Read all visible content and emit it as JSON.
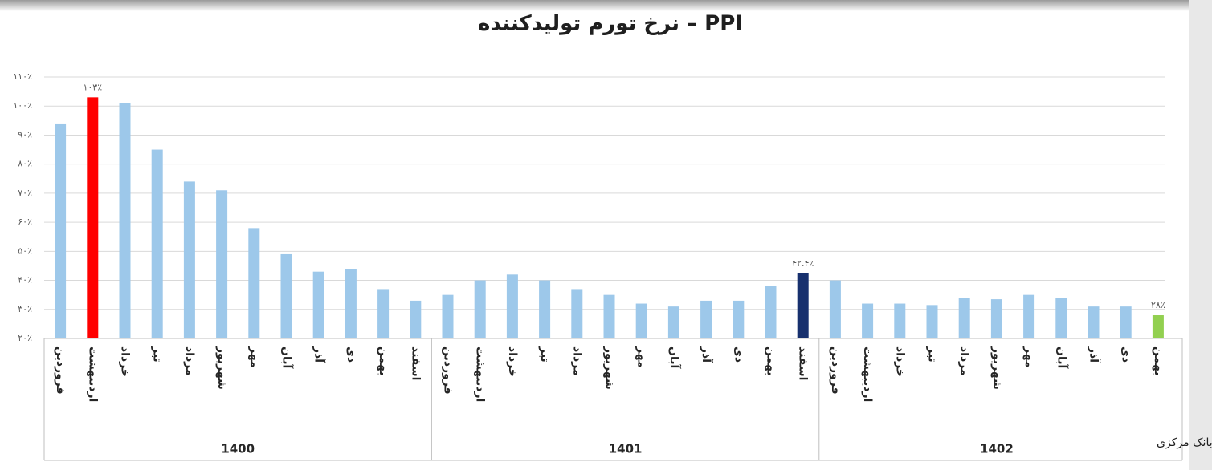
{
  "chart_data": {
    "type": "bar",
    "title": "نرخ تورم تولیدکننده – PPI",
    "source": "منبع:بانک مرکزی",
    "ylim": [
      20,
      110
    ],
    "yticks": [
      {
        "value": 20,
        "label": "۲۰٪"
      },
      {
        "value": 30,
        "label": "۳۰٪"
      },
      {
        "value": 40,
        "label": "۴۰٪"
      },
      {
        "value": 50,
        "label": "۵۰٪"
      },
      {
        "value": 60,
        "label": "۶۰٪"
      },
      {
        "value": 70,
        "label": "۷۰٪"
      },
      {
        "value": 80,
        "label": "۸۰٪"
      },
      {
        "value": 90,
        "label": "۹۰٪"
      },
      {
        "value": 100,
        "label": "۱۰۰٪"
      },
      {
        "value": 110,
        "label": "۱۱۰٪"
      }
    ],
    "grid": true,
    "groups": [
      {
        "label": "1400",
        "categories": [
          "فروردین",
          "اردیبهشت",
          "خرداد",
          "تیر",
          "مرداد",
          "شهریور",
          "مهر",
          "آبان",
          "آذر",
          "دی",
          "بهمن",
          "اسفند"
        ],
        "values": [
          94,
          103,
          101,
          85,
          74,
          71,
          58,
          49,
          43,
          44,
          37,
          33
        ],
        "value_labels": [
          null,
          "۱۰۳٪",
          null,
          null,
          null,
          null,
          null,
          null,
          null,
          null,
          null,
          null
        ],
        "colors": [
          "#9dc8ea",
          "#ff0000",
          "#9dc8ea",
          "#9dc8ea",
          "#9dc8ea",
          "#9dc8ea",
          "#9dc8ea",
          "#9dc8ea",
          "#9dc8ea",
          "#9dc8ea",
          "#9dc8ea",
          "#9dc8ea"
        ]
      },
      {
        "label": "1401",
        "categories": [
          "فروردین",
          "اردیبهشت",
          "خرداد",
          "تیر",
          "مرداد",
          "شهریور",
          "مهر",
          "آبان",
          "آذر",
          "دی",
          "بهمن",
          "اسفند"
        ],
        "values": [
          35,
          40,
          42,
          40,
          37,
          35,
          32,
          31,
          33,
          33,
          38,
          42.4
        ],
        "value_labels": [
          null,
          null,
          null,
          null,
          null,
          null,
          null,
          null,
          null,
          null,
          null,
          "۴۲.۴٪"
        ],
        "colors": [
          "#9dc8ea",
          "#9dc8ea",
          "#9dc8ea",
          "#9dc8ea",
          "#9dc8ea",
          "#9dc8ea",
          "#9dc8ea",
          "#9dc8ea",
          "#9dc8ea",
          "#9dc8ea",
          "#9dc8ea",
          "#17306e"
        ]
      },
      {
        "label": "1402",
        "categories": [
          "فروردین",
          "اردیبهشت",
          "خرداد",
          "تیر",
          "مرداد",
          "شهریور",
          "مهر",
          "آبان",
          "آذر",
          "دی",
          "بهمن"
        ],
        "values": [
          40,
          32,
          32,
          31.5,
          34,
          33.5,
          35,
          34,
          31,
          31,
          28
        ],
        "value_labels": [
          null,
          null,
          null,
          null,
          null,
          null,
          null,
          null,
          null,
          null,
          "۲۸٪"
        ],
        "colors": [
          "#9dc8ea",
          "#9dc8ea",
          "#9dc8ea",
          "#9dc8ea",
          "#9dc8ea",
          "#9dc8ea",
          "#9dc8ea",
          "#9dc8ea",
          "#9dc8ea",
          "#9dc8ea",
          "#92d050"
        ]
      }
    ]
  }
}
